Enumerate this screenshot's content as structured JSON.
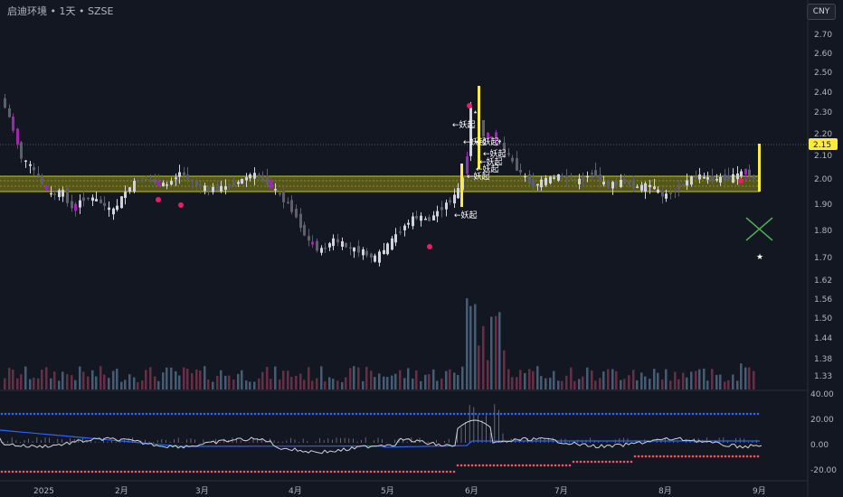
{
  "header": {
    "symbol": "启迪环境",
    "sep": "•",
    "interval": "1天",
    "exchange": "SZSE",
    "currency_button": "CNY"
  },
  "colors": {
    "background": "#131722",
    "candle_up": "#d1d4dc",
    "candle_down": "#5d606b",
    "candle_highlight": "#9c27b0",
    "zone_fill": "#8a8a14",
    "zone_line": "#c6c61e",
    "yellow_bar": "#ffeb3b",
    "price_badge": "#ffeb3b",
    "oscillator_line": "#d1d4dc",
    "oscillator_signal": "#2962ff",
    "upper_dots": "#2962ff",
    "lower_dots": "#f7525f",
    "markers": "#e91e63",
    "cross": "#4caf50"
  },
  "price_axis": {
    "ticks": [
      "2.70",
      "2.60",
      "2.50",
      "2.40",
      "2.30",
      "2.20",
      "2.10",
      "2.00",
      "1.90",
      "1.80",
      "1.70",
      "1.62",
      "1.56",
      "1.50",
      "1.44",
      "1.38",
      "1.33"
    ],
    "current_price_label": "2.15"
  },
  "oscillator_axis": {
    "ticks": [
      "40.00",
      "20.00",
      "0.00",
      "-20.00"
    ]
  },
  "time_axis": {
    "labels": [
      "2025",
      "2月",
      "3月",
      "4月",
      "5月",
      "6月",
      "7月",
      "8月",
      "9月"
    ]
  },
  "annotations": {
    "signal_label": "←妖起"
  },
  "chart_data": {
    "type": "candlestick",
    "instrument": "启迪环境",
    "interval": "1天",
    "exchange": "SZSE",
    "currency": "CNY",
    "current_price": 2.15,
    "support_zone": [
      1.95,
      2.01
    ],
    "ylim": [
      1.3,
      2.75
    ],
    "oscillator": {
      "upper_level": 22,
      "ylim": [
        -25,
        40
      ]
    },
    "x_labels": [
      "2025",
      "2月",
      "3月",
      "4月",
      "5月",
      "6月",
      "7月",
      "8月",
      "9月"
    ],
    "candles": []
  }
}
